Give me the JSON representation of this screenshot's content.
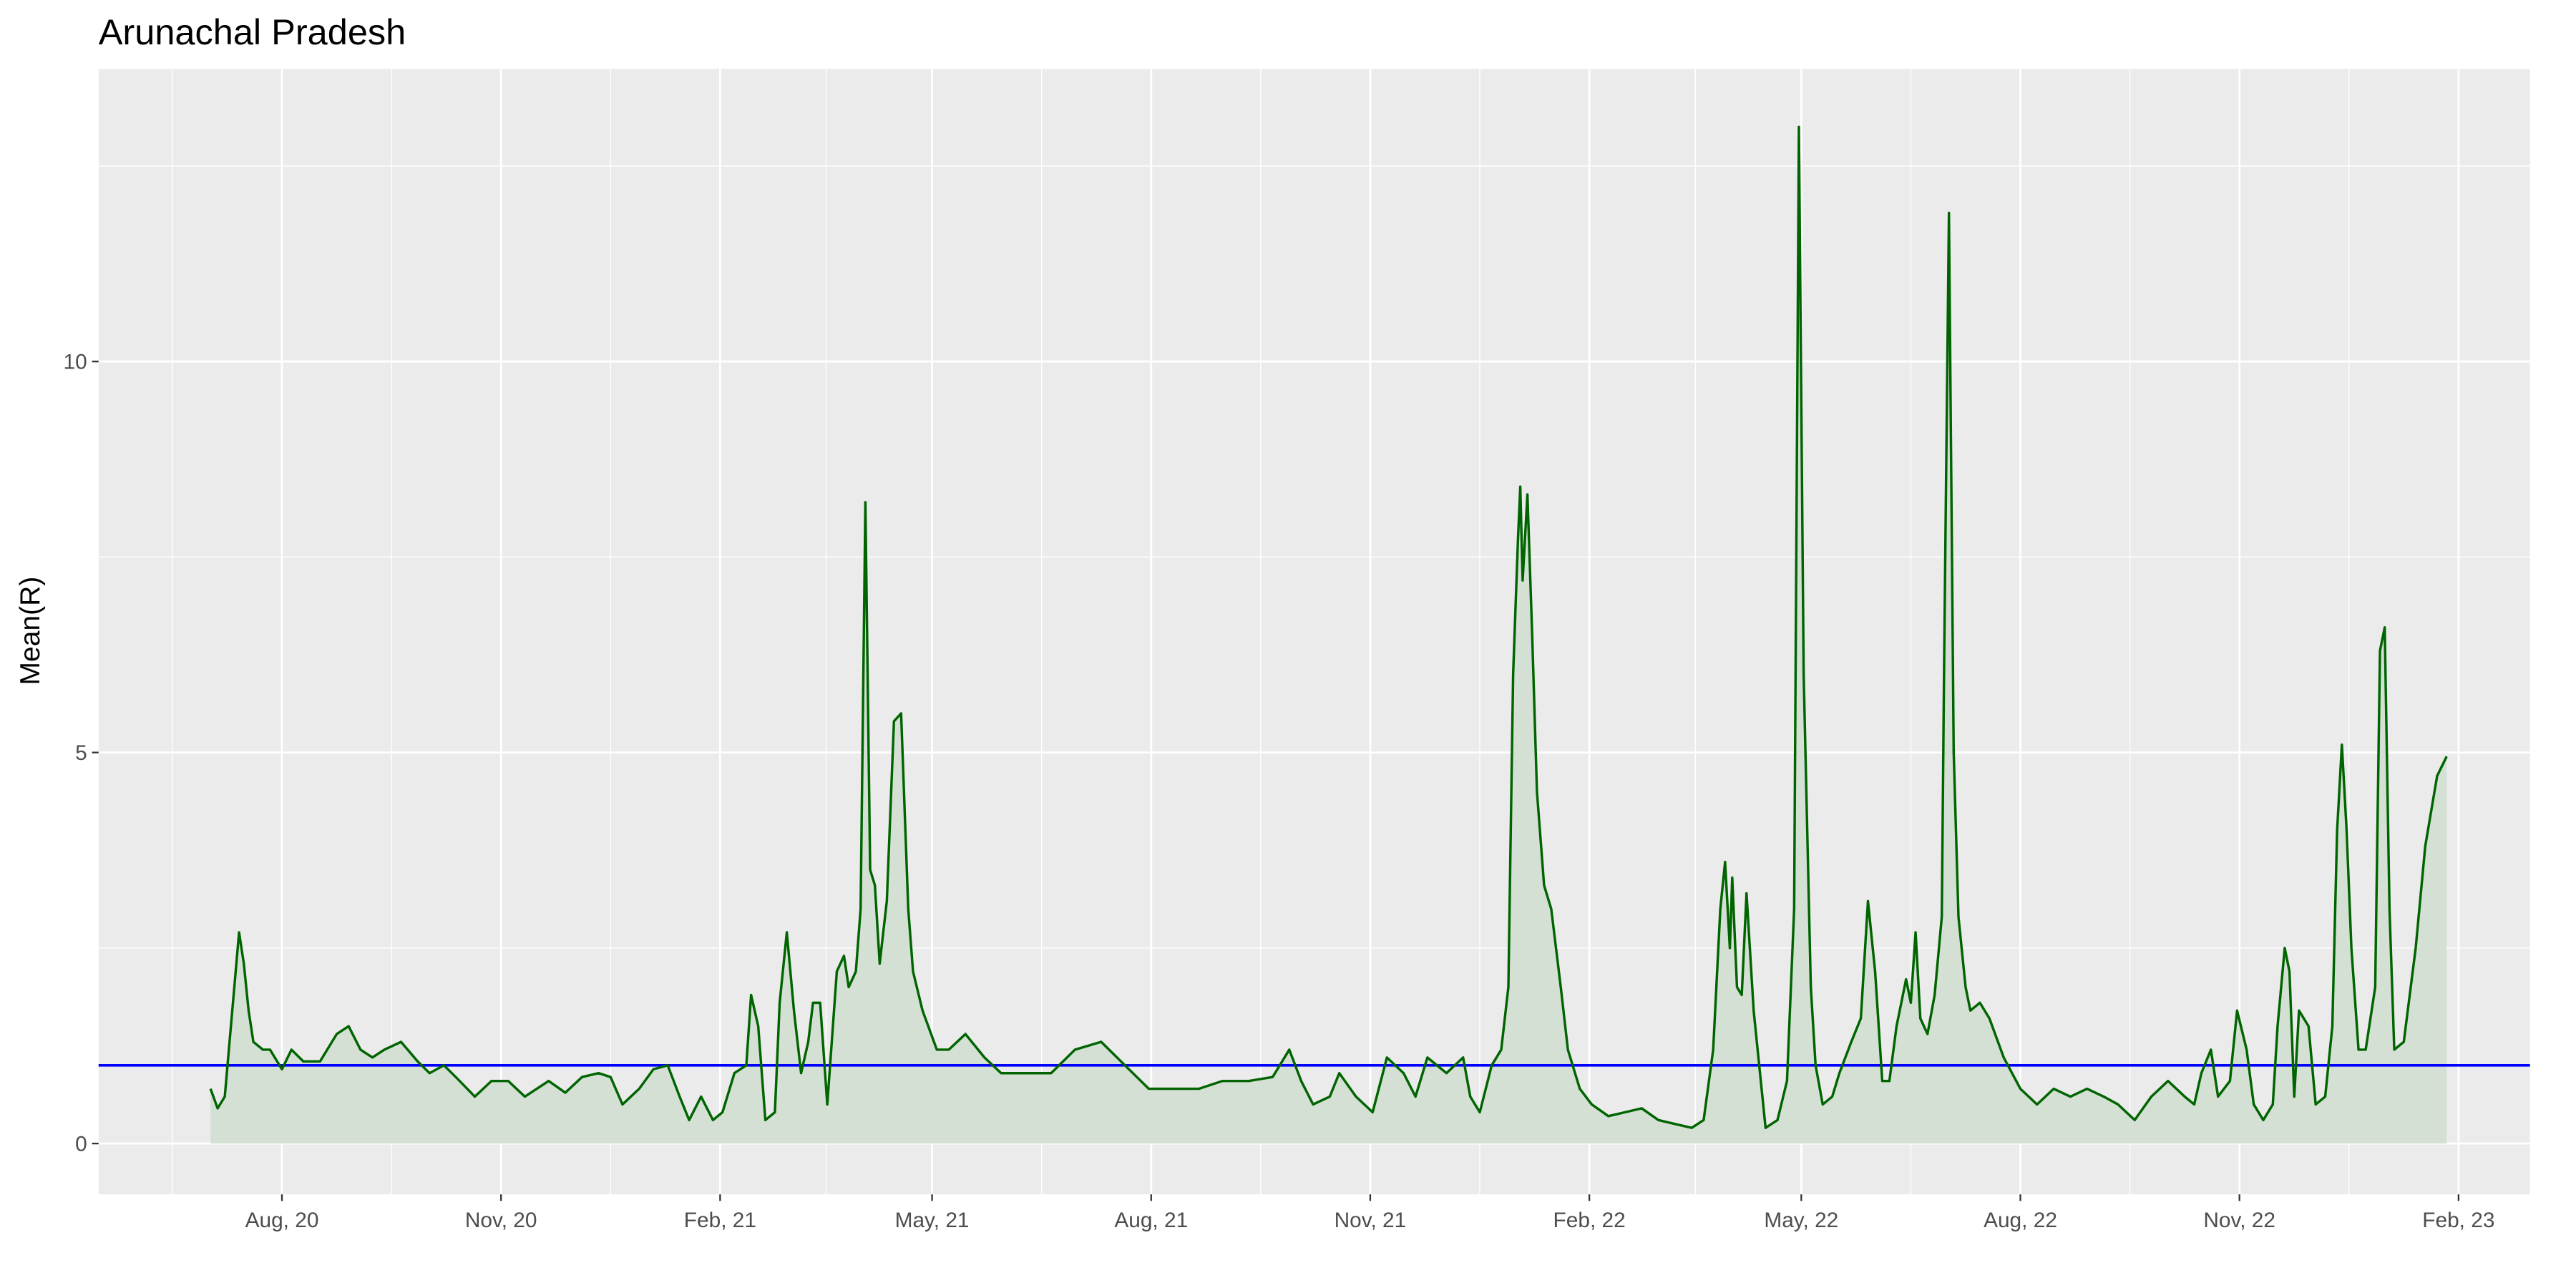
{
  "chart_data": {
    "type": "area",
    "title": "Arunachal Pradesh",
    "y_label": "Mean(R)",
    "color": "#006400",
    "fill_color": "#d5e0d5",
    "hline": 1,
    "hline_color": "#0000ff",
    "grid": true,
    "xlim": [
      "2020-05-16",
      "2023-03-03"
    ],
    "xticks": [
      {
        "value": "2020-08-01",
        "label": "Aug, 20"
      },
      {
        "value": "2020-11-01",
        "label": "Nov, 20"
      },
      {
        "value": "2021-02-01",
        "label": "Feb, 21"
      },
      {
        "value": "2021-05-01",
        "label": "May, 21"
      },
      {
        "value": "2021-08-01",
        "label": "Aug, 21"
      },
      {
        "value": "2021-11-01",
        "label": "Nov, 21"
      },
      {
        "value": "2022-02-01",
        "label": "Feb, 22"
      },
      {
        "value": "2022-05-01",
        "label": "May, 22"
      },
      {
        "value": "2022-08-01",
        "label": "Aug, 22"
      },
      {
        "value": "2022-11-01",
        "label": "Nov, 22"
      },
      {
        "value": "2023-02-01",
        "label": "Feb, 23"
      }
    ],
    "ylim": [
      -0.65,
      13.74
    ],
    "yticks": [
      0,
      5,
      10
    ],
    "x": [
      "2020-07-02",
      "2020-07-05",
      "2020-07-08",
      "2020-07-10",
      "2020-07-12",
      "2020-07-14",
      "2020-07-16",
      "2020-07-18",
      "2020-07-20",
      "2020-07-24",
      "2020-07-27",
      "2020-08-01",
      "2020-08-05",
      "2020-08-10",
      "2020-08-17",
      "2020-08-24",
      "2020-08-29",
      "2020-09-03",
      "2020-09-08",
      "2020-09-13",
      "2020-09-20",
      "2020-09-27",
      "2020-10-02",
      "2020-10-08",
      "2020-10-13",
      "2020-10-21",
      "2020-10-28",
      "2020-11-04",
      "2020-11-11",
      "2020-11-21",
      "2020-11-28",
      "2020-12-05",
      "2020-12-12",
      "2020-12-17",
      "2020-12-22",
      "2020-12-29",
      "2021-01-04",
      "2021-01-10",
      "2021-01-15",
      "2021-01-19",
      "2021-01-24",
      "2021-01-29",
      "2021-02-02",
      "2021-02-07",
      "2021-02-12",
      "2021-02-14",
      "2021-02-17",
      "2021-02-20",
      "2021-02-24",
      "2021-02-26",
      "2021-03-01",
      "2021-03-04",
      "2021-03-07",
      "2021-03-10",
      "2021-03-12",
      "2021-03-15",
      "2021-03-18",
      "2021-03-22",
      "2021-03-25",
      "2021-03-27",
      "2021-03-30",
      "2021-04-01",
      "2021-04-03",
      "2021-04-05",
      "2021-04-07",
      "2021-04-09",
      "2021-04-12",
      "2021-04-15",
      "2021-04-18",
      "2021-04-21",
      "2021-04-23",
      "2021-04-27",
      "2021-05-03",
      "2021-05-08",
      "2021-05-15",
      "2021-05-23",
      "2021-05-30",
      "2021-06-10",
      "2021-06-20",
      "2021-06-30",
      "2021-07-11",
      "2021-07-21",
      "2021-07-31",
      "2021-08-11",
      "2021-08-21",
      "2021-08-31",
      "2021-09-11",
      "2021-09-21",
      "2021-09-28",
      "2021-10-03",
      "2021-10-08",
      "2021-10-15",
      "2021-10-19",
      "2021-10-26",
      "2021-11-02",
      "2021-11-08",
      "2021-11-15",
      "2021-11-20",
      "2021-11-25",
      "2021-12-03",
      "2021-12-10",
      "2021-12-13",
      "2021-12-17",
      "2021-12-22",
      "2021-12-26",
      "2021-12-29",
      "2021-12-31",
      "2022-01-02",
      "2022-01-03",
      "2022-01-04",
      "2022-01-06",
      "2022-01-08",
      "2022-01-10",
      "2022-01-13",
      "2022-01-16",
      "2022-01-20",
      "2022-01-23",
      "2022-01-28",
      "2022-02-02",
      "2022-02-09",
      "2022-02-16",
      "2022-02-23",
      "2022-03-02",
      "2022-03-09",
      "2022-03-16",
      "2022-03-21",
      "2022-03-25",
      "2022-03-28",
      "2022-03-30",
      "2022-04-01",
      "2022-04-02",
      "2022-04-04",
      "2022-04-06",
      "2022-04-08",
      "2022-04-11",
      "2022-04-14",
      "2022-04-16",
      "2022-04-21",
      "2022-04-25",
      "2022-04-28",
      "2022-04-30",
      "2022-05-02",
      "2022-05-05",
      "2022-05-07",
      "2022-05-10",
      "2022-05-14",
      "2022-05-17",
      "2022-05-22",
      "2022-05-26",
      "2022-05-29",
      "2022-06-01",
      "2022-06-04",
      "2022-06-07",
      "2022-06-10",
      "2022-06-14",
      "2022-06-16",
      "2022-06-18",
      "2022-06-20",
      "2022-06-23",
      "2022-06-26",
      "2022-06-29",
      "2022-06-30",
      "2022-07-02",
      "2022-07-04",
      "2022-07-06",
      "2022-07-09",
      "2022-07-11",
      "2022-07-15",
      "2022-07-19",
      "2022-07-25",
      "2022-08-01",
      "2022-08-08",
      "2022-08-15",
      "2022-08-22",
      "2022-08-29",
      "2022-09-05",
      "2022-09-11",
      "2022-09-18",
      "2022-09-25",
      "2022-10-02",
      "2022-10-09",
      "2022-10-13",
      "2022-10-16",
      "2022-10-20",
      "2022-10-23",
      "2022-10-28",
      "2022-10-31",
      "2022-11-04",
      "2022-11-07",
      "2022-11-11",
      "2022-11-15",
      "2022-11-17",
      "2022-11-20",
      "2022-11-22",
      "2022-11-24",
      "2022-11-26",
      "2022-11-30",
      "2022-12-03",
      "2022-12-07",
      "2022-12-10",
      "2022-12-12",
      "2022-12-14",
      "2022-12-16",
      "2022-12-18",
      "2022-12-21",
      "2022-12-24",
      "2022-12-28",
      "2022-12-30",
      "2023-01-01",
      "2023-01-03",
      "2023-01-05",
      "2023-01-09",
      "2023-01-14",
      "2023-01-18",
      "2023-01-23",
      "2023-01-27"
    ],
    "values": [
      0.7,
      0.45,
      0.6,
      1.3,
      2.0,
      2.7,
      2.3,
      1.7,
      1.3,
      1.2,
      1.2,
      0.95,
      1.2,
      1.05,
      1.05,
      1.4,
      1.5,
      1.2,
      1.1,
      1.2,
      1.3,
      1.05,
      0.9,
      1.0,
      0.85,
      0.6,
      0.8,
      0.8,
      0.6,
      0.8,
      0.65,
      0.85,
      0.9,
      0.85,
      0.5,
      0.7,
      0.95,
      1.0,
      0.6,
      0.3,
      0.6,
      0.3,
      0.4,
      0.9,
      1.0,
      1.9,
      1.5,
      0.3,
      0.4,
      1.8,
      2.7,
      1.7,
      0.9,
      1.3,
      1.8,
      1.8,
      0.5,
      2.2,
      2.4,
      2.0,
      2.2,
      3.0,
      8.2,
      3.5,
      3.3,
      2.3,
      3.1,
      5.4,
      5.5,
      3.0,
      2.2,
      1.7,
      1.2,
      1.2,
      1.4,
      1.1,
      0.9,
      0.9,
      0.9,
      1.2,
      1.3,
      1.0,
      0.7,
      0.7,
      0.7,
      0.8,
      0.8,
      0.85,
      1.2,
      0.8,
      0.5,
      0.6,
      0.9,
      0.6,
      0.4,
      1.1,
      0.9,
      0.6,
      1.1,
      0.9,
      1.1,
      0.6,
      0.4,
      1.0,
      1.2,
      2.0,
      6.0,
      7.7,
      8.4,
      7.2,
      8.3,
      6.5,
      4.5,
      3.3,
      3.0,
      2.0,
      1.2,
      0.7,
      0.5,
      0.35,
      0.4,
      0.45,
      0.3,
      0.25,
      0.2,
      0.3,
      1.2,
      3.0,
      3.6,
      2.5,
      3.4,
      2.0,
      1.9,
      3.2,
      1.7,
      0.8,
      0.2,
      0.3,
      0.8,
      3.0,
      13.0,
      6.0,
      2.0,
      1.0,
      0.5,
      0.6,
      0.9,
      1.3,
      1.6,
      3.1,
      2.2,
      0.8,
      0.8,
      1.5,
      2.1,
      1.8,
      2.7,
      1.6,
      1.4,
      1.9,
      2.9,
      6.2,
      11.9,
      5.0,
      2.9,
      2.0,
      1.7,
      1.8,
      1.6,
      1.1,
      0.7,
      0.5,
      0.7,
      0.6,
      0.7,
      0.6,
      0.5,
      0.3,
      0.6,
      0.8,
      0.6,
      0.5,
      0.9,
      1.2,
      0.6,
      0.8,
      1.7,
      1.2,
      0.5,
      0.3,
      0.5,
      1.5,
      2.5,
      2.2,
      0.6,
      1.7,
      1.5,
      0.5,
      0.6,
      1.5,
      4.0,
      5.1,
      4.0,
      2.5,
      1.2,
      1.2,
      2.0,
      6.3,
      6.6,
      3.0,
      1.2,
      1.3,
      2.5,
      3.8,
      4.7,
      4.95
    ]
  }
}
